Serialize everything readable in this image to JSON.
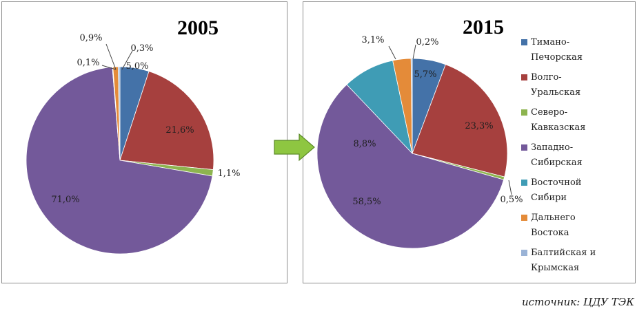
{
  "series_colors": {
    "Тимано-Печорская": "#4472a8",
    "Волго-Уральская": "#a6403e",
    "Северо-Кавказская": "#8db44f",
    "Западно-Сибирская": "#73599a",
    "Восточной Сибири": "#3f9cb5",
    "Дальнего Востока": "#e48b39",
    "Балтийская и Крымская": "#9ab3d6"
  },
  "chart_data": [
    {
      "type": "pie",
      "title": "2005",
      "categories": [
        "Тимано-Печорская",
        "Волго-Уральская",
        "Северо-Кавказская",
        "Западно-Сибирская",
        "Восточной Сибири",
        "Дальнего Востока",
        "Балтийская и Крымская"
      ],
      "values": [
        5.0,
        21.6,
        1.1,
        71.0,
        0.1,
        0.9,
        0.3
      ],
      "labels": [
        "5,0%",
        "21,6%",
        "1,1%",
        "71,0%",
        "0,1%",
        "0,9%",
        "0,3%"
      ]
    },
    {
      "type": "pie",
      "title": "2015",
      "categories": [
        "Тимано-Печорская",
        "Волго-Уральская",
        "Северо-Кавказская",
        "Западно-Сибирская",
        "Восточной Сибири",
        "Дальнего Востока",
        "Балтийская и Крымская"
      ],
      "values": [
        5.7,
        23.3,
        0.5,
        58.5,
        8.8,
        3.1,
        0.2
      ],
      "labels": [
        "5,7%",
        "23,3%",
        "0,5%",
        "58,5%",
        "8,8%",
        "3,1%",
        "0,2%"
      ],
      "legend": {
        "position": "right",
        "entries": [
          {
            "line1": "Тимано-",
            "line2": "Печорская"
          },
          {
            "line1": "Волго-",
            "line2": "Уральская"
          },
          {
            "line1": "Северо-",
            "line2": "Кавказская"
          },
          {
            "line1": "Западно-",
            "line2": "Сибирская"
          },
          {
            "line1": "Восточной",
            "line2": "Сибири"
          },
          {
            "line1": "Дальнего",
            "line2": "Востока"
          },
          {
            "line1": "Балтийская и",
            "line2": "Крымская"
          }
        ]
      }
    }
  ],
  "source_text": "источник: ЦДУ ТЭК"
}
